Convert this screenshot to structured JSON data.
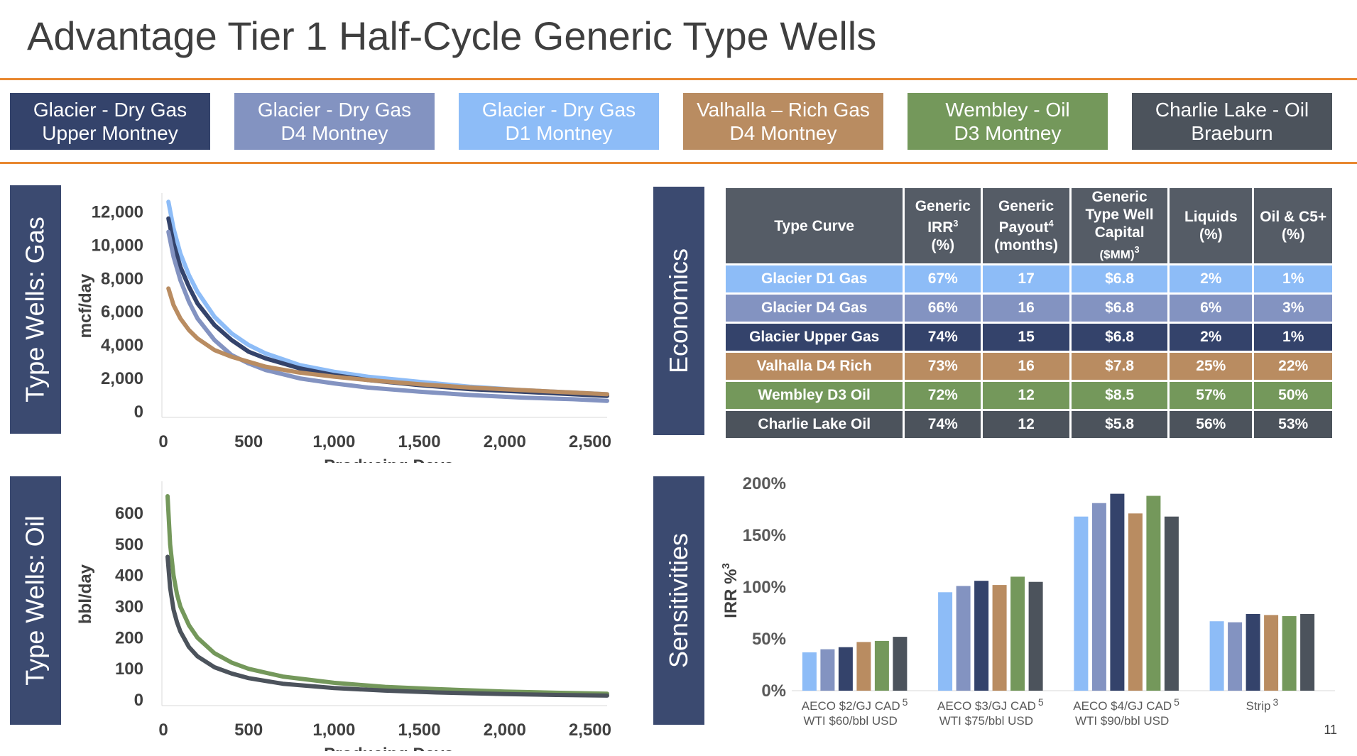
{
  "title": "Advantage Tier 1 Half-Cycle Generic Type Wells",
  "page_number": "11",
  "colors": {
    "accent_rule": "#e8872f",
    "side_label_bg": "#3b4a70",
    "d1": "#8dbcf7",
    "d4": "#8393c1",
    "upper": "#34436b",
    "valhalla": "#b98c61",
    "wembley": "#74985b",
    "charlie": "#4c535c"
  },
  "legend_tiles": [
    {
      "line1": "Glacier - Dry Gas",
      "line2": "Upper Montney",
      "color": "#34436b"
    },
    {
      "line1": "Glacier - Dry Gas",
      "line2": "D4 Montney",
      "color": "#8393c1"
    },
    {
      "line1": "Glacier - Dry Gas",
      "line2": "D1 Montney",
      "color": "#8dbcf7"
    },
    {
      "line1": "Valhalla – Rich Gas",
      "line2": "D4 Montney",
      "color": "#b98c61"
    },
    {
      "line1": "Wembley - Oil",
      "line2": "D3 Montney",
      "color": "#74985b"
    },
    {
      "line1": "Charlie Lake - Oil",
      "line2": "Braeburn",
      "color": "#4c535c"
    }
  ],
  "side_labels": {
    "gas": "Type Wells: Gas",
    "oil": "Type Wells: Oil",
    "economics": "Economics",
    "sensitivities": "Sensitivities"
  },
  "economics": {
    "headers": {
      "type_curve": "Type Curve",
      "irr": {
        "text": "Generic IRR",
        "sup": "3",
        "unit": "(%)"
      },
      "payout": {
        "text": "Generic Payout",
        "sup": "4",
        "unit": "(months)"
      },
      "capital": {
        "line1": "Generic",
        "line2": "Type Well",
        "line3": "Capital",
        "unit": "($MM)",
        "sup": "3"
      },
      "liquids": {
        "text": "Liquids",
        "unit": "(%)"
      },
      "oil_c5": {
        "text": "Oil & C5+",
        "unit": "(%)"
      }
    },
    "rows": [
      {
        "name": "Glacier D1 Gas",
        "irr": "67%",
        "payout": "17",
        "capital": "$6.8",
        "liquids": "2%",
        "oil_c5": "1%",
        "color": "#8dbcf7"
      },
      {
        "name": "Glacier D4 Gas",
        "irr": "66%",
        "payout": "16",
        "capital": "$6.8",
        "liquids": "6%",
        "oil_c5": "3%",
        "color": "#8393c1"
      },
      {
        "name": "Glacier Upper Gas",
        "irr": "74%",
        "payout": "15",
        "capital": "$6.8",
        "liquids": "2%",
        "oil_c5": "1%",
        "color": "#34436b"
      },
      {
        "name": "Valhalla D4 Rich",
        "irr": "73%",
        "payout": "16",
        "capital": "$7.8",
        "liquids": "25%",
        "oil_c5": "22%",
        "color": "#b98c61"
      },
      {
        "name": "Wembley D3 Oil",
        "irr": "72%",
        "payout": "12",
        "capital": "$8.5",
        "liquids": "57%",
        "oil_c5": "50%",
        "color": "#74985b"
      },
      {
        "name": "Charlie Lake Oil",
        "irr": "74%",
        "payout": "12",
        "capital": "$5.8",
        "liquids": "56%",
        "oil_c5": "53%",
        "color": "#4c535c"
      }
    ]
  },
  "chart_data": [
    {
      "id": "gas",
      "type": "line",
      "xlabel": "Producing Days",
      "ylabel": "mcf/day",
      "xlim": [
        0,
        2600
      ],
      "ylim": [
        0,
        12700
      ],
      "xticks": [
        0,
        500,
        1000,
        1500,
        2000,
        2500
      ],
      "xtick_labels": [
        "0",
        "500",
        "1,000",
        "1,500",
        "2,000",
        "2,500"
      ],
      "yticks": [
        0,
        2000,
        4000,
        6000,
        8000,
        10000,
        12000
      ],
      "ytick_labels": [
        "0",
        "2,000",
        "4,000",
        "6,000",
        "8,000",
        "10,000",
        "12,000"
      ],
      "x": [
        30,
        60,
        100,
        150,
        200,
        300,
        400,
        500,
        600,
        800,
        1000,
        1200,
        1500,
        1800,
        2100,
        2400,
        2600
      ],
      "series": [
        {
          "key": "d1",
          "color": "#8dbcf7",
          "values": [
            12600,
            11000,
            9500,
            8200,
            7200,
            5700,
            4700,
            4000,
            3500,
            2800,
            2400,
            2100,
            1800,
            1500,
            1300,
            1150,
            1050
          ]
        },
        {
          "key": "upper",
          "color": "#34436b",
          "values": [
            11600,
            10100,
            8700,
            7500,
            6500,
            5200,
            4300,
            3600,
            3200,
            2600,
            2200,
            1900,
            1600,
            1350,
            1200,
            1050,
            950
          ]
        },
        {
          "key": "d4",
          "color": "#8393c1",
          "values": [
            10800,
            9300,
            7900,
            6600,
            5600,
            4300,
            3400,
            2900,
            2500,
            2000,
            1700,
            1450,
            1200,
            1000,
            850,
            750,
            650
          ]
        },
        {
          "key": "valhalla",
          "color": "#b98c61",
          "values": [
            7400,
            6400,
            5600,
            4900,
            4400,
            3700,
            3300,
            3000,
            2700,
            2350,
            2100,
            1900,
            1650,
            1450,
            1300,
            1150,
            1050
          ]
        }
      ]
    },
    {
      "id": "oil",
      "type": "line",
      "xlabel": "Producing Days",
      "ylabel": "bbl/day",
      "xlim": [
        0,
        2600
      ],
      "ylim": [
        0,
        680
      ],
      "xticks": [
        0,
        500,
        1000,
        1500,
        2000,
        2500
      ],
      "xtick_labels": [
        "0",
        "500",
        "1,000",
        "1,500",
        "2,000",
        "2,500"
      ],
      "yticks": [
        0,
        100,
        200,
        300,
        400,
        500,
        600
      ],
      "ytick_labels": [
        "0",
        "100",
        "200",
        "300",
        "400",
        "500",
        "600"
      ],
      "x": [
        25,
        40,
        60,
        80,
        100,
        150,
        200,
        300,
        400,
        500,
        700,
        1000,
        1300,
        1600,
        2000,
        2300,
        2600
      ],
      "series": [
        {
          "key": "wembley",
          "color": "#74985b",
          "values": [
            655,
            500,
            400,
            340,
            300,
            240,
            200,
            150,
            120,
            100,
            75,
            55,
            42,
            35,
            27,
            23,
            20
          ]
        },
        {
          "key": "charlie",
          "color": "#4c535c",
          "values": [
            460,
            360,
            290,
            250,
            220,
            170,
            140,
            105,
            85,
            70,
            52,
            38,
            30,
            24,
            19,
            16,
            14
          ]
        }
      ]
    },
    {
      "id": "sensitivities",
      "type": "bar",
      "ylabel": "IRR %",
      "ylabel_sup": "3",
      "ylim": [
        0,
        200
      ],
      "yticks": [
        0,
        50,
        100,
        150,
        200
      ],
      "ytick_labels": [
        "0%",
        "50%",
        "100%",
        "150%",
        "200%"
      ],
      "categories": [
        {
          "line1": "AECO $2/GJ CAD",
          "sup": "5",
          "line2": "WTI $60/bbl USD"
        },
        {
          "line1": "AECO $3/GJ CAD",
          "sup": "5",
          "line2": "WTI $75/bbl USD"
        },
        {
          "line1": "AECO $4/GJ CAD",
          "sup": "5",
          "line2": "WTI $90/bbl USD"
        },
        {
          "line1": "Strip",
          "sup": "3",
          "line2": ""
        }
      ],
      "series": [
        {
          "key": "d1",
          "color": "#8dbcf7",
          "values": [
            37,
            95,
            168,
            67
          ]
        },
        {
          "key": "d4",
          "color": "#8393c1",
          "values": [
            40,
            101,
            181,
            66
          ]
        },
        {
          "key": "upper",
          "color": "#34436b",
          "values": [
            42,
            106,
            190,
            74
          ]
        },
        {
          "key": "valhalla",
          "color": "#b98c61",
          "values": [
            47,
            102,
            171,
            73
          ]
        },
        {
          "key": "wembley",
          "color": "#74985b",
          "values": [
            48,
            110,
            188,
            72
          ]
        },
        {
          "key": "charlie",
          "color": "#4c535c",
          "values": [
            52,
            105,
            168,
            74
          ]
        }
      ]
    }
  ]
}
